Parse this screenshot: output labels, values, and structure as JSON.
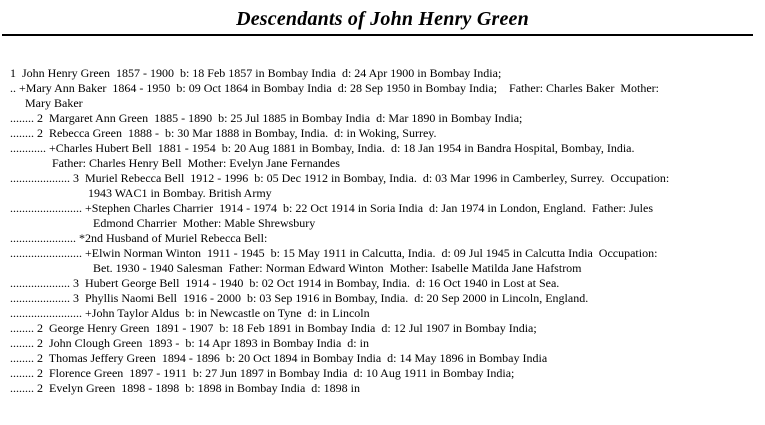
{
  "page": {
    "title": "Descendants of John Henry Green"
  },
  "colors": {
    "text": "#000000",
    "background": "#ffffff",
    "divider": "#000000"
  },
  "report": {
    "lines": [
      {
        "pad": 10,
        "text": "1  John Henry Green  1857 - 1900  b: 18 Feb 1857 in Bombay India  d: 24 Apr 1900 in Bombay India;"
      },
      {
        "pad": 10,
        "text": ".. +Mary Ann Baker  1864 - 1950  b: 09 Oct 1864 in Bombay India  d: 28 Sep 1950 in Bombay India;    Father: Charles Baker  Mother:"
      },
      {
        "pad": 25,
        "text": "Mary Baker"
      },
      {
        "pad": 10,
        "text": "........ 2  Margaret Ann Green  1885 - 1890  b: 25 Jul 1885 in Bombay India  d: Mar 1890 in Bombay India;"
      },
      {
        "pad": 10,
        "text": "........ 2  Rebecca Green  1888 -  b: 30 Mar 1888 in Bombay, India.  d: in Woking, Surrey."
      },
      {
        "pad": 10,
        "text": "............ +Charles Hubert Bell  1881 - 1954  b: 20 Aug 1881 in Bombay, India.  d: 18 Jan 1954 in Bandra Hospital, Bombay, India."
      },
      {
        "pad": 52,
        "text": "Father: Charles Henry Bell  Mother: Evelyn Jane Fernandes"
      },
      {
        "pad": 10,
        "text": ".................... 3  Muriel Rebecca Bell  1912 - 1996  b: 05 Dec 1912 in Bombay, India.  d: 03 Mar 1996 in Camberley, Surrey.  Occupation:"
      },
      {
        "pad": 88,
        "text": "1943 WAC1 in Bombay. British Army"
      },
      {
        "pad": 10,
        "text": "........................ +Stephen Charles Charrier  1914 - 1974  b: 22 Oct 1914 in Soria India  d: Jan 1974 in London, England.  Father: Jules"
      },
      {
        "pad": 93,
        "text": "Edmond Charrier  Mother: Mable Shrewsbury"
      },
      {
        "pad": 10,
        "text": "...................... *2nd Husband of Muriel Rebecca Bell:"
      },
      {
        "pad": 10,
        "text": "........................ +Elwin Norman Winton  1911 - 1945  b: 15 May 1911 in Calcutta, India.  d: 09 Jul 1945 in Calcutta India  Occupation:"
      },
      {
        "pad": 93,
        "text": "Bet. 1930 - 1940 Salesman  Father: Norman Edward Winton  Mother: Isabelle Matilda Jane Hafstrom"
      },
      {
        "pad": 10,
        "text": ".................... 3  Hubert George Bell  1914 - 1940  b: 02 Oct 1914 in Bombay, India.  d: 16 Oct 1940 in Lost at Sea."
      },
      {
        "pad": 10,
        "text": ".................... 3  Phyllis Naomi Bell  1916 - 2000  b: 03 Sep 1916 in Bombay, India.  d: 20 Sep 2000 in Lincoln, England."
      },
      {
        "pad": 10,
        "text": "........................ +John Taylor Aldus  b: in Newcastle on Tyne  d: in Lincoln"
      },
      {
        "pad": 10,
        "text": "........ 2  George Henry Green  1891 - 1907  b: 18 Feb 1891 in Bombay India  d: 12 Jul 1907 in Bombay India;"
      },
      {
        "pad": 10,
        "text": "........ 2  John Clough Green  1893 -  b: 14 Apr 1893 in Bombay India  d: in"
      },
      {
        "pad": 10,
        "text": "........ 2  Thomas Jeffery Green  1894 - 1896  b: 20 Oct 1894 in Bombay India  d: 14 May 1896 in Bombay India"
      },
      {
        "pad": 10,
        "text": "........ 2  Florence Green  1897 - 1911  b: 27 Jun 1897 in Bombay India  d: 10 Aug 1911 in Bombay India;"
      },
      {
        "pad": 10,
        "text": "........ 2  Evelyn Green  1898 - 1898  b: 1898 in Bombay India  d: 1898 in"
      }
    ]
  }
}
